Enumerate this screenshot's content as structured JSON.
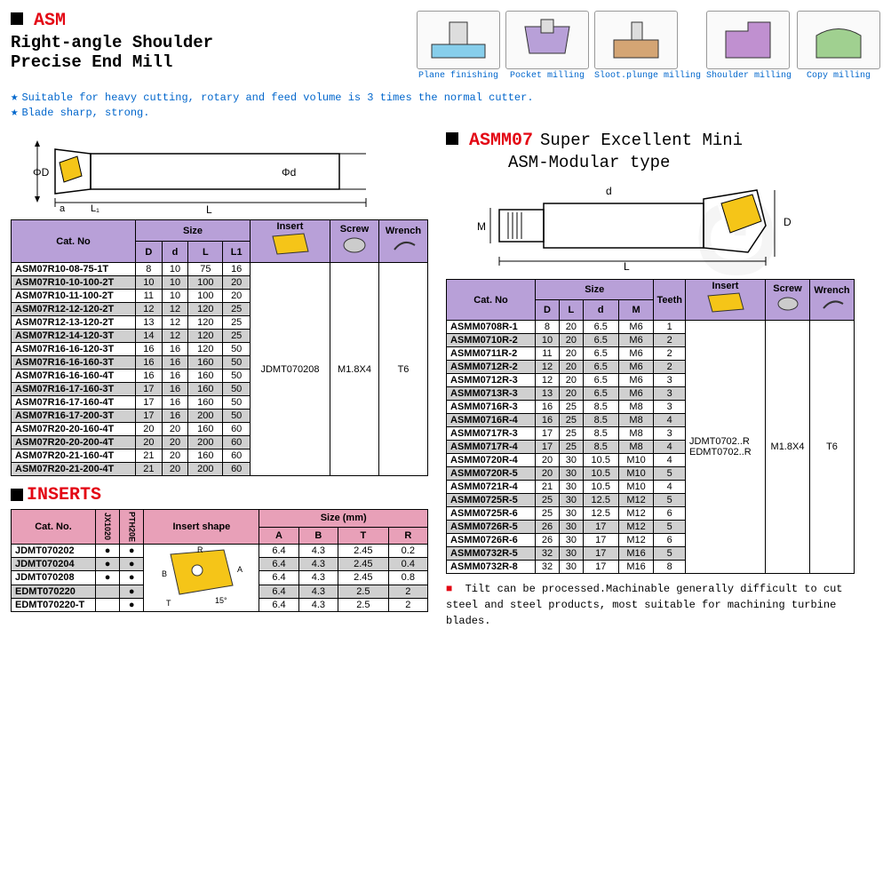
{
  "watermark": "MZG",
  "header": {
    "asm": "ASM",
    "title1": "Right-angle Shoulder",
    "title2": "Precise End Mill"
  },
  "icons": [
    {
      "label": "Plane finishing"
    },
    {
      "label": "Pocket milling"
    },
    {
      "label": "Sloot.plunge milling"
    },
    {
      "label": "Shoulder milling"
    },
    {
      "label": "Copy milling"
    }
  ],
  "bullets": [
    "Suitable for heavy cutting, rotary and feed volume is 3 times the normal cutter.",
    "Blade sharp, strong."
  ],
  "table1": {
    "headers": {
      "catno": "Cat. No",
      "size": "Size",
      "D": "D",
      "d": "d",
      "L": "L",
      "L1": "L1",
      "insert": "Insert",
      "screw": "Screw",
      "wrench": "Wrench"
    },
    "insert_val": "JDMT070208",
    "screw_val": "M1.8X4",
    "wrench_val": "T6",
    "rows": [
      {
        "no": "ASM07R10-08-75-1T",
        "D": "8",
        "d": "10",
        "L": "75",
        "L1": "16"
      },
      {
        "no": "ASM07R10-10-100-2T",
        "D": "10",
        "d": "10",
        "L": "100",
        "L1": "20"
      },
      {
        "no": "ASM07R10-11-100-2T",
        "D": "11",
        "d": "10",
        "L": "100",
        "L1": "20"
      },
      {
        "no": "ASM07R12-12-120-2T",
        "D": "12",
        "d": "12",
        "L": "120",
        "L1": "25"
      },
      {
        "no": "ASM07R12-13-120-2T",
        "D": "13",
        "d": "12",
        "L": "120",
        "L1": "25"
      },
      {
        "no": "ASM07R12-14-120-3T",
        "D": "14",
        "d": "12",
        "L": "120",
        "L1": "25"
      },
      {
        "no": "ASM07R16-16-120-3T",
        "D": "16",
        "d": "16",
        "L": "120",
        "L1": "50"
      },
      {
        "no": "ASM07R16-16-160-3T",
        "D": "16",
        "d": "16",
        "L": "160",
        "L1": "50"
      },
      {
        "no": "ASM07R16-16-160-4T",
        "D": "16",
        "d": "16",
        "L": "160",
        "L1": "50"
      },
      {
        "no": "ASM07R16-17-160-3T",
        "D": "17",
        "d": "16",
        "L": "160",
        "L1": "50"
      },
      {
        "no": "ASM07R16-17-160-4T",
        "D": "17",
        "d": "16",
        "L": "160",
        "L1": "50"
      },
      {
        "no": "ASM07R16-17-200-3T",
        "D": "17",
        "d": "16",
        "L": "200",
        "L1": "50"
      },
      {
        "no": "ASM07R20-20-160-4T",
        "D": "20",
        "d": "20",
        "L": "160",
        "L1": "60"
      },
      {
        "no": "ASM07R20-20-200-4T",
        "D": "20",
        "d": "20",
        "L": "200",
        "L1": "60"
      },
      {
        "no": "ASM07R20-21-160-4T",
        "D": "21",
        "d": "20",
        "L": "160",
        "L1": "60"
      },
      {
        "no": "ASM07R20-21-200-4T",
        "D": "21",
        "d": "20",
        "L": "200",
        "L1": "60"
      }
    ]
  },
  "inserts": {
    "title": "INSERTS",
    "headers": {
      "catno": "Cat. No.",
      "g1": "JX1020",
      "g2": "PTH20E",
      "shape": "Insert shape",
      "size": "Size (mm)",
      "A": "A",
      "B": "B",
      "T": "T",
      "R": "R"
    },
    "rows": [
      {
        "no": "JDMT070202",
        "g1": "●",
        "g2": "●",
        "A": "6.4",
        "B": "4.3",
        "T": "2.45",
        "R": "0.2"
      },
      {
        "no": "JDMT070204",
        "g1": "●",
        "g2": "●",
        "A": "6.4",
        "B": "4.3",
        "T": "2.45",
        "R": "0.4"
      },
      {
        "no": "JDMT070208",
        "g1": "●",
        "g2": "●",
        "A": "6.4",
        "B": "4.3",
        "T": "2.45",
        "R": "0.8"
      },
      {
        "no": "EDMT070220",
        "g1": "",
        "g2": "●",
        "A": "6.4",
        "B": "4.3",
        "T": "2.5",
        "R": "2"
      },
      {
        "no": "EDMT070220-T",
        "g1": "",
        "g2": "●",
        "A": "6.4",
        "B": "4.3",
        "T": "2.5",
        "R": "2"
      }
    ]
  },
  "modular": {
    "asm": "ASMM07",
    "title1": "Super Excellent Mini",
    "title2": "ASM-Modular type",
    "headers": {
      "catno": "Cat. No",
      "size": "Size",
      "D": "D",
      "L": "L",
      "d": "d",
      "M": "M",
      "teeth": "Teeth",
      "insert": "Insert",
      "screw": "Screw",
      "wrench": "Wrench"
    },
    "insert_val1": "JDMT0702..R",
    "insert_val2": "EDMT0702..R",
    "screw_val": "M1.8X4",
    "wrench_val": "T6",
    "rows": [
      {
        "no": "ASMM0708R-1",
        "D": "8",
        "L": "20",
        "d": "6.5",
        "M": "M6",
        "t": "1"
      },
      {
        "no": "ASMM0710R-2",
        "D": "10",
        "L": "20",
        "d": "6.5",
        "M": "M6",
        "t": "2"
      },
      {
        "no": "ASMM0711R-2",
        "D": "11",
        "L": "20",
        "d": "6.5",
        "M": "M6",
        "t": "2"
      },
      {
        "no": "ASMM0712R-2",
        "D": "12",
        "L": "20",
        "d": "6.5",
        "M": "M6",
        "t": "2"
      },
      {
        "no": "ASMM0712R-3",
        "D": "12",
        "L": "20",
        "d": "6.5",
        "M": "M6",
        "t": "3"
      },
      {
        "no": "ASMM0713R-3",
        "D": "13",
        "L": "20",
        "d": "6.5",
        "M": "M6",
        "t": "3"
      },
      {
        "no": "ASMM0716R-3",
        "D": "16",
        "L": "25",
        "d": "8.5",
        "M": "M8",
        "t": "3"
      },
      {
        "no": "ASMM0716R-4",
        "D": "16",
        "L": "25",
        "d": "8.5",
        "M": "M8",
        "t": "4"
      },
      {
        "no": "ASMM0717R-3",
        "D": "17",
        "L": "25",
        "d": "8.5",
        "M": "M8",
        "t": "3"
      },
      {
        "no": "ASMM0717R-4",
        "D": "17",
        "L": "25",
        "d": "8.5",
        "M": "M8",
        "t": "4"
      },
      {
        "no": "ASMM0720R-4",
        "D": "20",
        "L": "30",
        "d": "10.5",
        "M": "M10",
        "t": "4"
      },
      {
        "no": "ASMM0720R-5",
        "D": "20",
        "L": "30",
        "d": "10.5",
        "M": "M10",
        "t": "5"
      },
      {
        "no": "ASMM0721R-4",
        "D": "21",
        "L": "30",
        "d": "10.5",
        "M": "M10",
        "t": "4"
      },
      {
        "no": "ASMM0725R-5",
        "D": "25",
        "L": "30",
        "d": "12.5",
        "M": "M12",
        "t": "5"
      },
      {
        "no": "ASMM0725R-6",
        "D": "25",
        "L": "30",
        "d": "12.5",
        "M": "M12",
        "t": "6"
      },
      {
        "no": "ASMM0726R-5",
        "D": "26",
        "L": "30",
        "d": "17",
        "M": "M12",
        "t": "5"
      },
      {
        "no": "ASMM0726R-6",
        "D": "26",
        "L": "30",
        "d": "17",
        "M": "M12",
        "t": "6"
      },
      {
        "no": "ASMM0732R-5",
        "D": "32",
        "L": "30",
        "d": "17",
        "M": "M16",
        "t": "5"
      },
      {
        "no": "ASMM0732R-8",
        "D": "32",
        "L": "30",
        "d": "17",
        "M": "M16",
        "t": "8"
      }
    ]
  },
  "footnote": "Tilt can be processed.Machinable generally difficult to cut steel and steel products, most suitable for machining turbine blades.",
  "diagram_labels": {
    "phiD": "ΦD",
    "phid": "Φd",
    "a": "a",
    "L": "L",
    "L1": "L1",
    "M": "M",
    "D": "D",
    "d": "d"
  }
}
